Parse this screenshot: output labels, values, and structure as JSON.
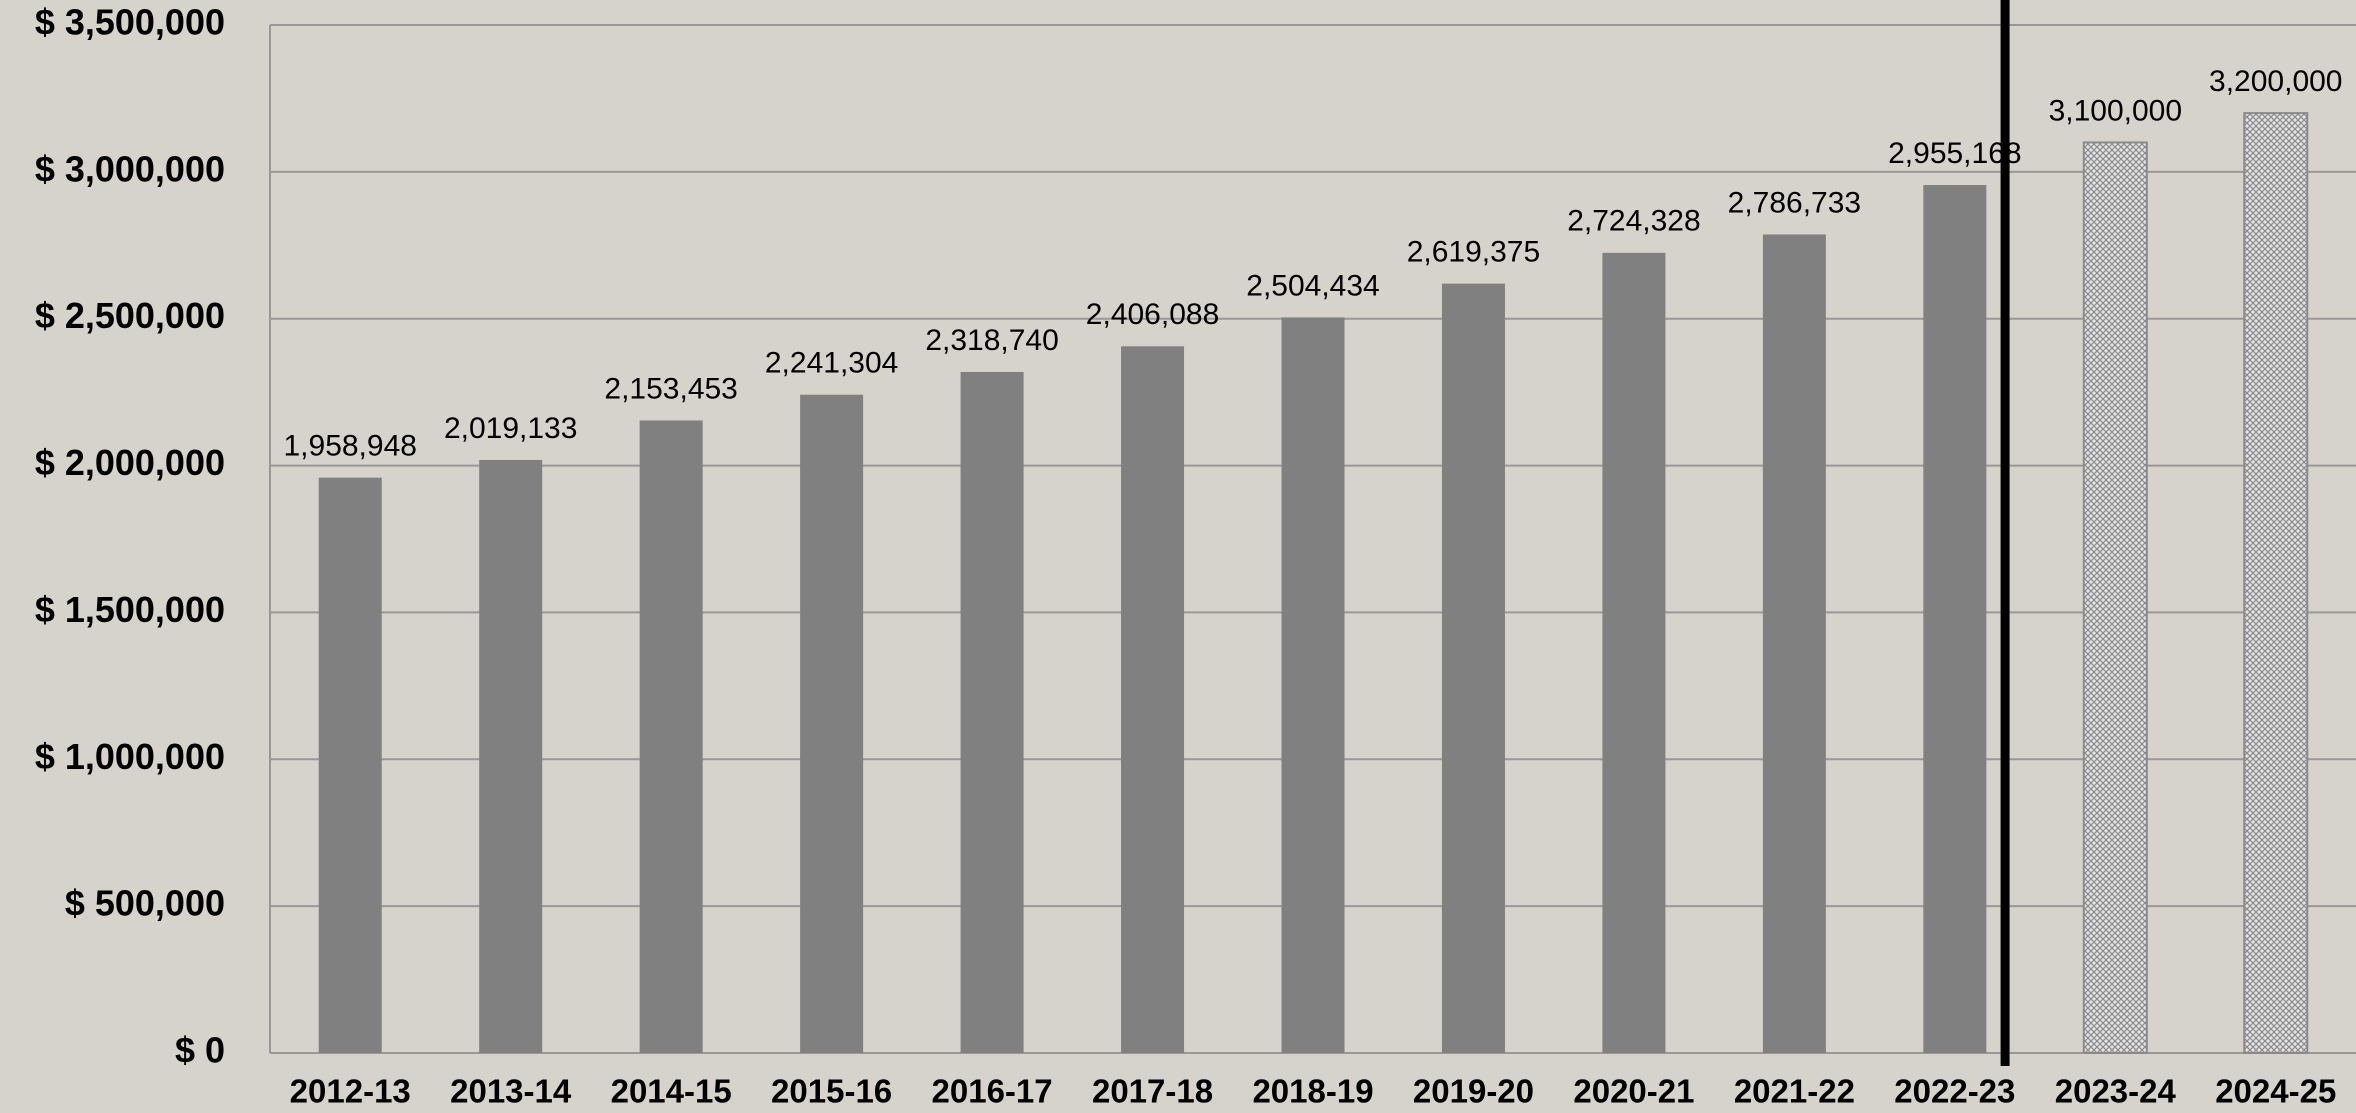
{
  "chart_data": {
    "type": "bar",
    "categories": [
      "2012-13",
      "2013-14",
      "2014-15",
      "2015-16",
      "2016-17",
      "2017-18",
      "2018-19",
      "2019-20",
      "2020-21",
      "2021-22",
      "2022-23",
      "2023-24",
      "2024-25"
    ],
    "values": [
      1958948,
      2019133,
      2153453,
      2241304,
      2318740,
      2406088,
      2504434,
      2619375,
      2724328,
      2786733,
      2955168,
      3100000,
      3200000
    ],
    "value_labels": [
      "1,958,948",
      "2,019,133",
      "2,153,453",
      "2,241,304",
      "2,318,740",
      "2,406,088",
      "2,504,434",
      "2,619,375",
      "2,724,328",
      "2,786,733",
      "2,955,168",
      "3,100,000",
      "3,200,000"
    ],
    "color": "#808080",
    "styles": [
      "solid",
      "solid",
      "solid",
      "solid",
      "solid",
      "solid",
      "solid",
      "solid",
      "solid",
      "solid",
      "solid",
      "hatched",
      "hatched"
    ],
    "ylim": [
      0,
      3500000
    ],
    "yticks": [
      {
        "value": 0,
        "label": "$ 0"
      },
      {
        "value": 500000,
        "label": "$ 500,000"
      },
      {
        "value": 1000000,
        "label": "$ 1,000,000"
      },
      {
        "value": 1500000,
        "label": "$ 1,500,000"
      },
      {
        "value": 2000000,
        "label": "$ 2,000,000"
      },
      {
        "value": 2500000,
        "label": "$ 2,500,000"
      },
      {
        "value": 3000000,
        "label": "$ 3,000,000"
      },
      {
        "value": 3500000,
        "label": "$ 3,500,000"
      }
    ],
    "grid": true
  }
}
